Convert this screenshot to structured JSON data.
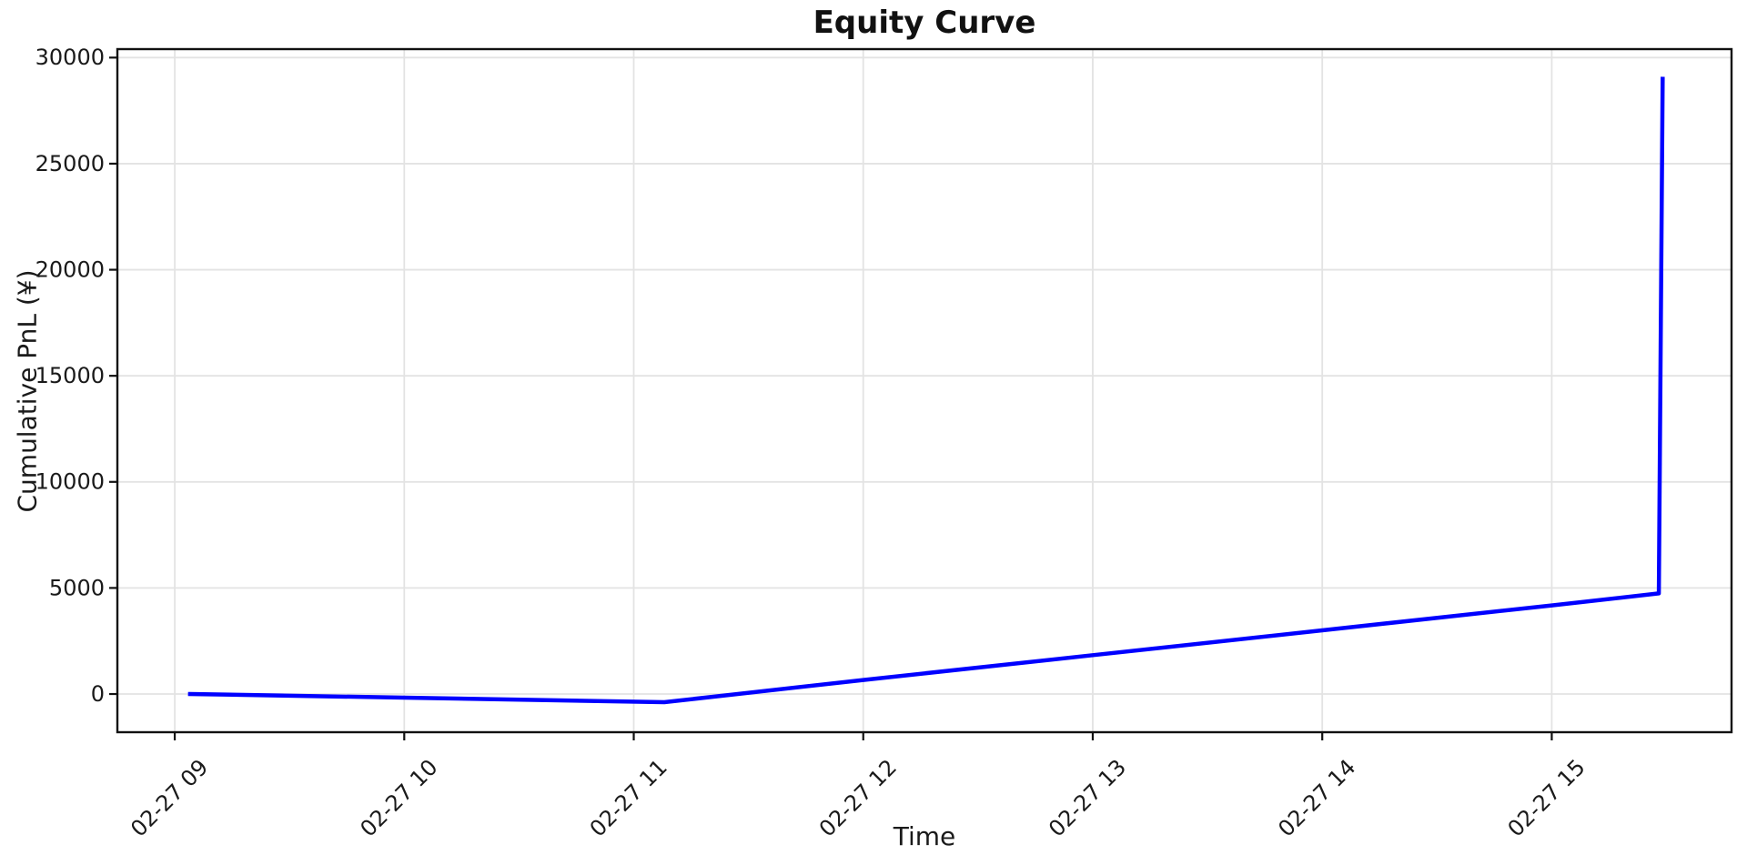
{
  "chart_data": {
    "type": "line",
    "title": "Equity Curve",
    "xlabel": "Time",
    "ylabel": "Cumulative PnL (¥)",
    "grid": true,
    "legend": "none",
    "background": "#ffffff",
    "xlim": [
      "02-27 08:45",
      "02-27 15:47"
    ],
    "ylim": [
      -1800,
      30400
    ],
    "y_ticks": [
      0,
      5000,
      10000,
      15000,
      20000,
      25000,
      30000
    ],
    "x_ticks": [
      {
        "time": "02-27 09:00",
        "label": "02-27 09"
      },
      {
        "time": "02-27 10:00",
        "label": "02-27 10"
      },
      {
        "time": "02-27 11:00",
        "label": "02-27 11"
      },
      {
        "time": "02-27 12:00",
        "label": "02-27 12"
      },
      {
        "time": "02-27 13:00",
        "label": "02-27 13"
      },
      {
        "time": "02-27 14:00",
        "label": "02-27 14"
      },
      {
        "time": "02-27 15:00",
        "label": "02-27 15"
      }
    ],
    "series": [
      {
        "name": "Cumulative PnL",
        "color": "#0000ff",
        "points": [
          [
            "02-27 09:04",
            0
          ],
          [
            "02-27 10:00",
            -170
          ],
          [
            "02-27 11:08",
            -385
          ],
          [
            "02-27 12:00",
            660
          ],
          [
            "02-27 13:00",
            1830
          ],
          [
            "02-27 14:00",
            3000
          ],
          [
            "02-27 15:00",
            4175
          ],
          [
            "02-27 15:28",
            4745
          ],
          [
            "02-27 15:29",
            29000
          ]
        ]
      }
    ]
  },
  "colors": {
    "grid": "#e3e3e3",
    "spine": "#111111",
    "tick_text": "#1a1a1a",
    "line": "#0000ff"
  }
}
